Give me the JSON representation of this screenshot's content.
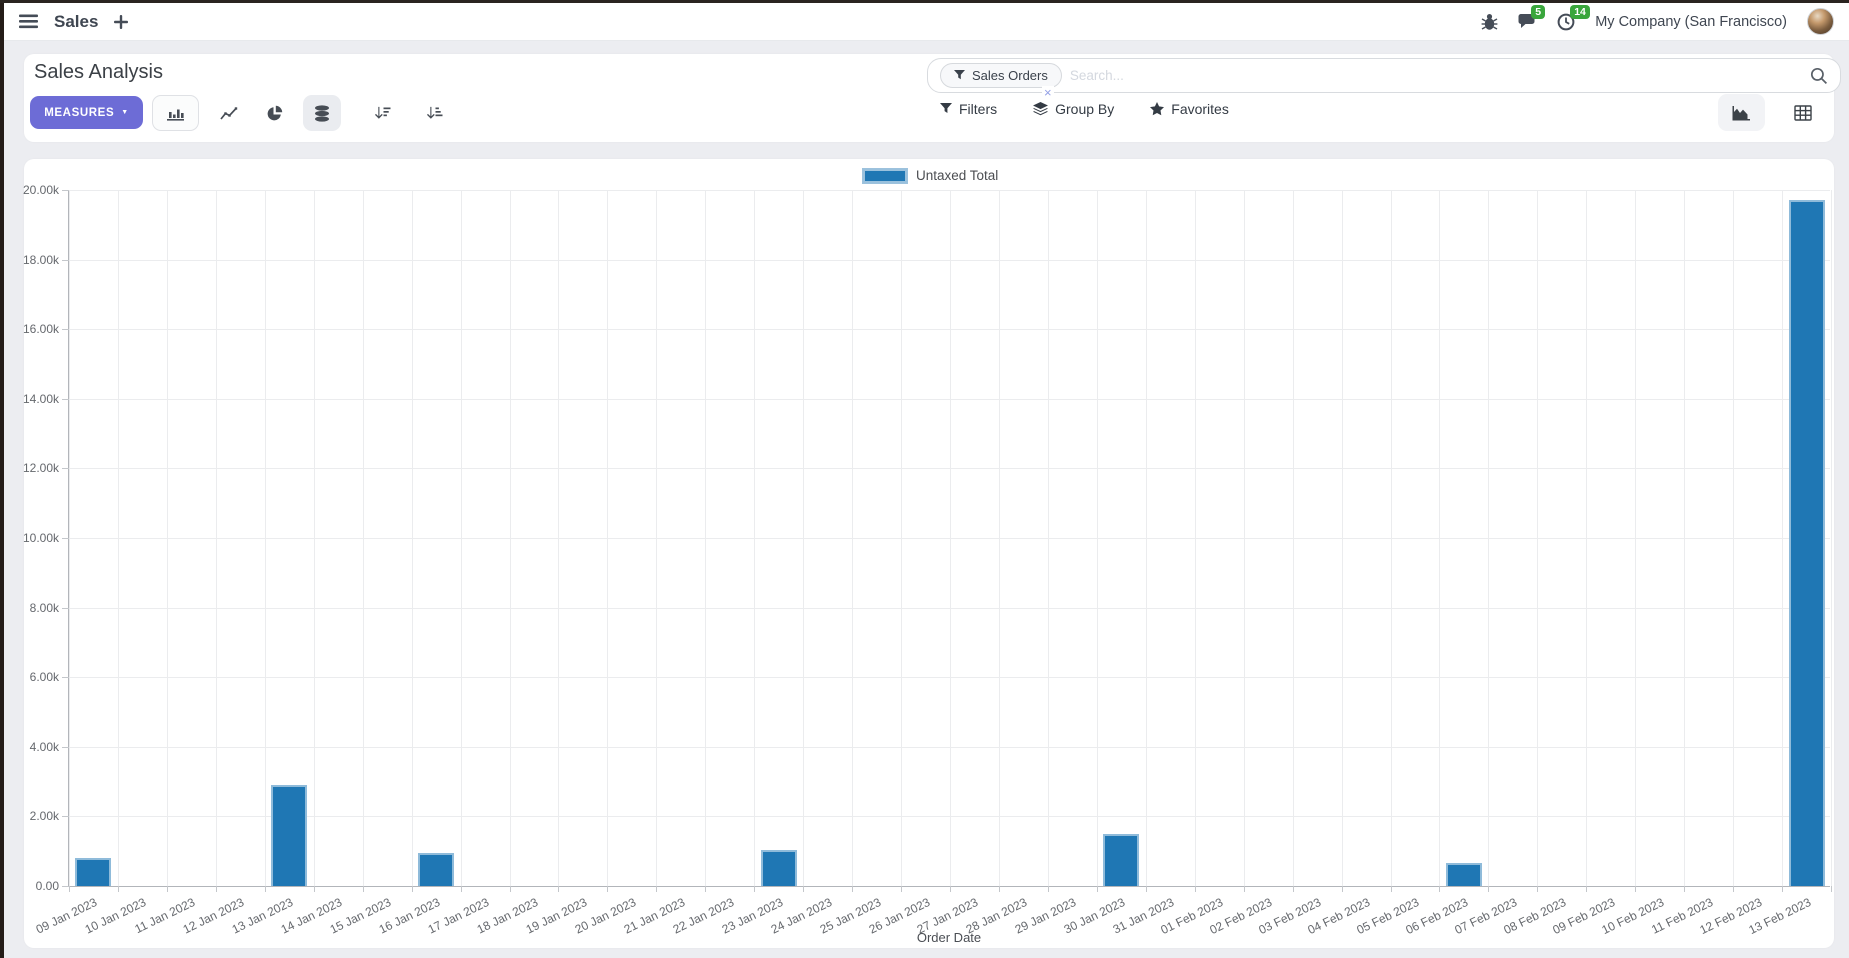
{
  "colors": {
    "accent": "#6d6cd6",
    "bar": "#1f77b4",
    "badge": "#3aa63c"
  },
  "topbar": {
    "app_name": "Sales",
    "messages_badge": "5",
    "activities_badge": "14",
    "company": "My Company (San Francisco)"
  },
  "control_panel": {
    "title": "Sales Analysis",
    "measures_label": "MEASURES",
    "search": {
      "facet": "Sales Orders",
      "facet_remove": "×",
      "placeholder": "Search..."
    },
    "menus": {
      "filters": "Filters",
      "group_by": "Group By",
      "favorites": "Favorites"
    }
  },
  "chart_data": {
    "type": "bar",
    "title": "",
    "xlabel": "Order Date",
    "ylabel": "",
    "grid": true,
    "legend_position": "top-center",
    "legend": [
      {
        "label": "Untaxed Total",
        "color": "#1f77b4"
      }
    ],
    "ylim": [
      0,
      20000
    ],
    "y_ticks": [
      {
        "value": 0,
        "label": "0.00"
      },
      {
        "value": 2000,
        "label": "2.00k"
      },
      {
        "value": 4000,
        "label": "4.00k"
      },
      {
        "value": 6000,
        "label": "6.00k"
      },
      {
        "value": 8000,
        "label": "8.00k"
      },
      {
        "value": 10000,
        "label": "10.00k"
      },
      {
        "value": 12000,
        "label": "12.00k"
      },
      {
        "value": 14000,
        "label": "14.00k"
      },
      {
        "value": 16000,
        "label": "16.00k"
      },
      {
        "value": 18000,
        "label": "18.00k"
      },
      {
        "value": 20000,
        "label": "20.00k"
      }
    ],
    "categories": [
      "09 Jan 2023",
      "10 Jan 2023",
      "11 Jan 2023",
      "12 Jan 2023",
      "13 Jan 2023",
      "14 Jan 2023",
      "15 Jan 2023",
      "16 Jan 2023",
      "17 Jan 2023",
      "18 Jan 2023",
      "19 Jan 2023",
      "20 Jan 2023",
      "21 Jan 2023",
      "22 Jan 2023",
      "23 Jan 2023",
      "24 Jan 2023",
      "25 Jan 2023",
      "26 Jan 2023",
      "27 Jan 2023",
      "28 Jan 2023",
      "29 Jan 2023",
      "30 Jan 2023",
      "31 Jan 2023",
      "01 Feb 2023",
      "02 Feb 2023",
      "03 Feb 2023",
      "04 Feb 2023",
      "05 Feb 2023",
      "06 Feb 2023",
      "07 Feb 2023",
      "08 Feb 2023",
      "09 Feb 2023",
      "10 Feb 2023",
      "11 Feb 2023",
      "12 Feb 2023",
      "13 Feb 2023"
    ],
    "series": [
      {
        "name": "Untaxed Total",
        "color": "#1f77b4",
        "values": [
          800,
          0,
          0,
          0,
          2900,
          0,
          0,
          950,
          0,
          0,
          0,
          0,
          0,
          0,
          1050,
          0,
          0,
          0,
          0,
          0,
          0,
          1500,
          0,
          0,
          0,
          0,
          0,
          0,
          650,
          0,
          0,
          0,
          0,
          0,
          0,
          19700
        ]
      }
    ]
  }
}
